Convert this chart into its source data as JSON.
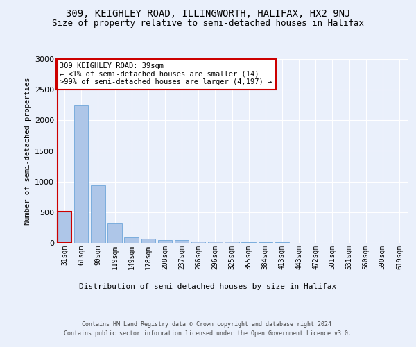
{
  "title1": "309, KEIGHLEY ROAD, ILLINGWORTH, HALIFAX, HX2 9NJ",
  "title2": "Size of property relative to semi-detached houses in Halifax",
  "xlabel": "Distribution of semi-detached houses by size in Halifax",
  "ylabel": "Number of semi-detached properties",
  "annotation_title": "309 KEIGHLEY ROAD: 39sqm",
  "annotation_line1": "← <1% of semi-detached houses are smaller (14)",
  "annotation_line2": ">99% of semi-detached houses are larger (4,197) →",
  "footer1": "Contains HM Land Registry data © Crown copyright and database right 2024.",
  "footer2": "Contains public sector information licensed under the Open Government Licence v3.0.",
  "categories": [
    "31sqm",
    "61sqm",
    "90sqm",
    "119sqm",
    "149sqm",
    "178sqm",
    "208sqm",
    "237sqm",
    "266sqm",
    "296sqm",
    "325sqm",
    "355sqm",
    "384sqm",
    "413sqm",
    "443sqm",
    "472sqm",
    "501sqm",
    "531sqm",
    "560sqm",
    "590sqm",
    "619sqm"
  ],
  "values": [
    510,
    2240,
    940,
    320,
    85,
    65,
    50,
    40,
    28,
    22,
    18,
    14,
    10,
    8,
    5,
    4,
    3,
    2,
    1,
    1,
    1
  ],
  "bar_color": "#aec6e8",
  "bar_edge_color": "#5b9bd5",
  "highlight_bar_index": 0,
  "highlight_edge_color": "#cc0000",
  "annotation_box_edge_color": "#cc0000",
  "ylim": [
    0,
    3000
  ],
  "yticks": [
    0,
    500,
    1000,
    1500,
    2000,
    2500,
    3000
  ],
  "bg_color": "#eaf0fb",
  "plot_bg_color": "#eaf0fb",
  "grid_color": "#ffffff",
  "title1_fontsize": 10,
  "title2_fontsize": 9
}
